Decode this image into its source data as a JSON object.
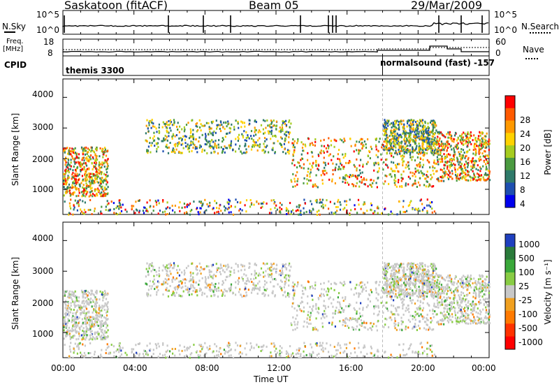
{
  "header": {
    "station": "Saskatoon (fitACF)",
    "beam": "Beam 05",
    "date": "29/Mar/2009"
  },
  "noise_panel": {
    "left_label": "N.Sky",
    "right_label": "N.Search",
    "left_ticks": [
      "10^5",
      "10^0"
    ],
    "right_ticks": [
      "10^5",
      "10^0"
    ]
  },
  "freq_panel": {
    "left_label_line1": "Freq.",
    "left_label_line2": "[MHz]",
    "right_label": "Nave",
    "left_ticks": [
      "18",
      "8"
    ],
    "right_ticks": [
      "60",
      "0"
    ]
  },
  "cpid_panel": {
    "label": "CPID",
    "program_1": "themis 3300",
    "program_2": "normalsound (fast) -157"
  },
  "power_panel": {
    "ylabel": "Slant Range [km]",
    "yticks": [
      "4000",
      "3000",
      "2000",
      "1000"
    ],
    "colorbar_label": "Power [dB]",
    "colorbar_ticks": [
      "28",
      "24",
      "20",
      "16",
      "12",
      "8",
      "4"
    ],
    "colorbar_colors": [
      "#0000ee",
      "#1e4fb0",
      "#2f7a6a",
      "#4a9a40",
      "#a6cc1f",
      "#ffd200",
      "#ff9900",
      "#ff5a00",
      "#ff0000"
    ]
  },
  "velocity_panel": {
    "ylabel": "Slant Range [km]",
    "yticks": [
      "4000",
      "3000",
      "2000",
      "1000"
    ],
    "colorbar_label": "Velocity [m s⁻¹]",
    "colorbar_ticks": [
      "1000",
      "500",
      "100",
      "25",
      "-25",
      "-100",
      "-500",
      "-1000"
    ],
    "colorbar_colors": [
      "#1f3fbf",
      "#2a7a3a",
      "#3aa83a",
      "#88cc44",
      "#c8c8c8",
      "#f0a020",
      "#ff7a00",
      "#ff3300",
      "#ff0000"
    ]
  },
  "xaxis": {
    "ticks": [
      "00:00",
      "04:00",
      "08:00",
      "12:00",
      "16:00",
      "20:00",
      "00:00"
    ],
    "label": "Time UT"
  },
  "chart_data": {
    "type": "heatmap",
    "title": "Saskatoon (fitACF)",
    "subtitle": "Beam 05",
    "xlabel": "Time UT",
    "ylabel": "Slant Range [km]",
    "xlim_hours": [
      0,
      24
    ],
    "ylim_km": [
      180,
      4600
    ],
    "cpid_change_hour": 18,
    "scatter_regions_power": [
      {
        "t0": 0.0,
        "t1": 2.5,
        "r0": 800,
        "r1": 2400,
        "level": "strong"
      },
      {
        "t0": 4.6,
        "t1": 12.8,
        "r0": 2200,
        "r1": 3300,
        "level": "moderate"
      },
      {
        "t0": 12.8,
        "t1": 21.0,
        "r0": 1100,
        "r1": 2700,
        "level": "strong"
      },
      {
        "t0": 18.0,
        "t1": 21.0,
        "r0": 2200,
        "r1": 3300,
        "level": "moderate"
      },
      {
        "t0": 21.0,
        "t1": 24.0,
        "r0": 1300,
        "r1": 2900,
        "level": "strong"
      },
      {
        "t0": 0.0,
        "t1": 21.0,
        "r0": 200,
        "r1": 700,
        "level": "weak"
      }
    ],
    "power_scale_db": [
      4,
      28
    ],
    "velocity_scale_ms": [
      -1000,
      1000
    ]
  }
}
